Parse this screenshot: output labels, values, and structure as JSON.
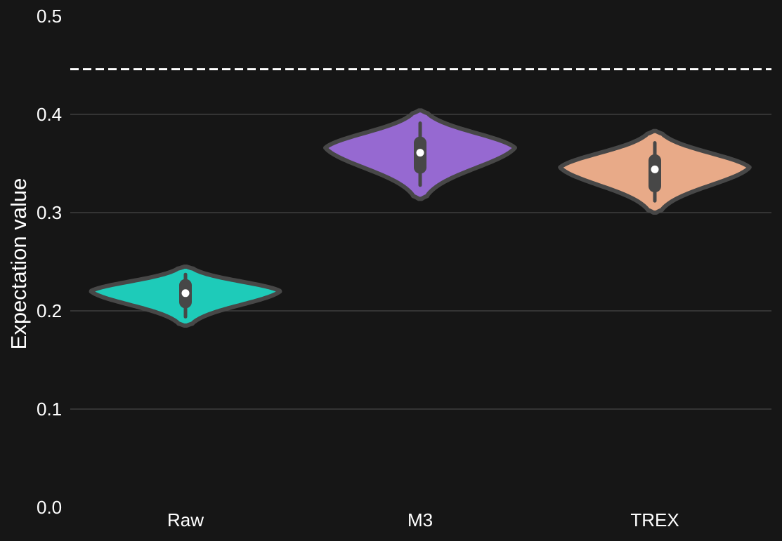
{
  "chart_data": {
    "type": "violin",
    "title": "",
    "xlabel": "",
    "ylabel": "Expectation value",
    "ylim": [
      0.0,
      0.5
    ],
    "yticks": [
      "0.0",
      "0.1",
      "0.2",
      "0.3",
      "0.4",
      "0.5"
    ],
    "grid": true,
    "categories": [
      "Raw",
      "M3",
      "TREX"
    ],
    "reference_line": {
      "value": 0.446,
      "style": "dashed",
      "color": "#ffffff"
    },
    "series": [
      {
        "category": "Raw",
        "color": "#1ecbb9",
        "min": 0.185,
        "max": 0.245,
        "q1": 0.209,
        "median": 0.218,
        "q3": 0.226,
        "whisker_low": 0.194,
        "whisker_high": 0.237,
        "mode": 0.22
      },
      {
        "category": "M3",
        "color": "#9669d1",
        "min": 0.314,
        "max": 0.404,
        "q1": 0.346,
        "median": 0.361,
        "q3": 0.371,
        "whisker_low": 0.328,
        "whisker_high": 0.391,
        "mode": 0.366
      },
      {
        "category": "TREX",
        "color": "#e8aa88",
        "min": 0.3,
        "max": 0.383,
        "q1": 0.327,
        "median": 0.344,
        "q3": 0.353,
        "whisker_low": 0.312,
        "whisker_high": 0.371,
        "mode": 0.346
      }
    ]
  }
}
